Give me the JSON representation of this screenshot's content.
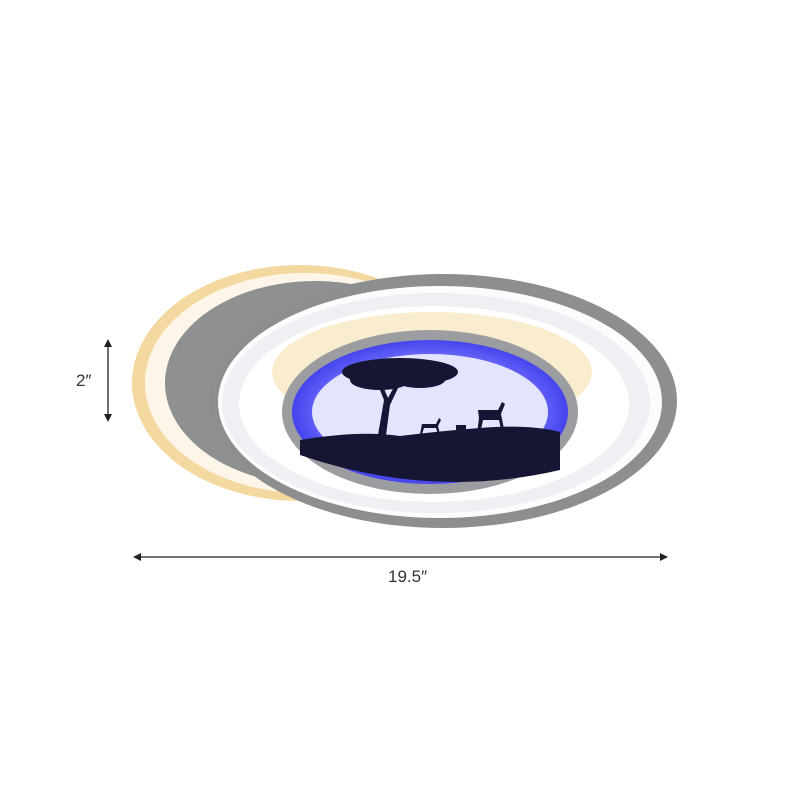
{
  "dimensions": {
    "height_label": "2″",
    "width_label": "19.5″"
  },
  "colors": {
    "warm_glow": "#f3d9a0",
    "frame_grey": "#8d8e90",
    "inner_white": "#f2f4f7",
    "blue_glow": "#3b3bf0",
    "silhouette": "#1a1a3a"
  },
  "icons": [
    "vertical-dimension-arrow",
    "horizontal-dimension-arrow"
  ]
}
